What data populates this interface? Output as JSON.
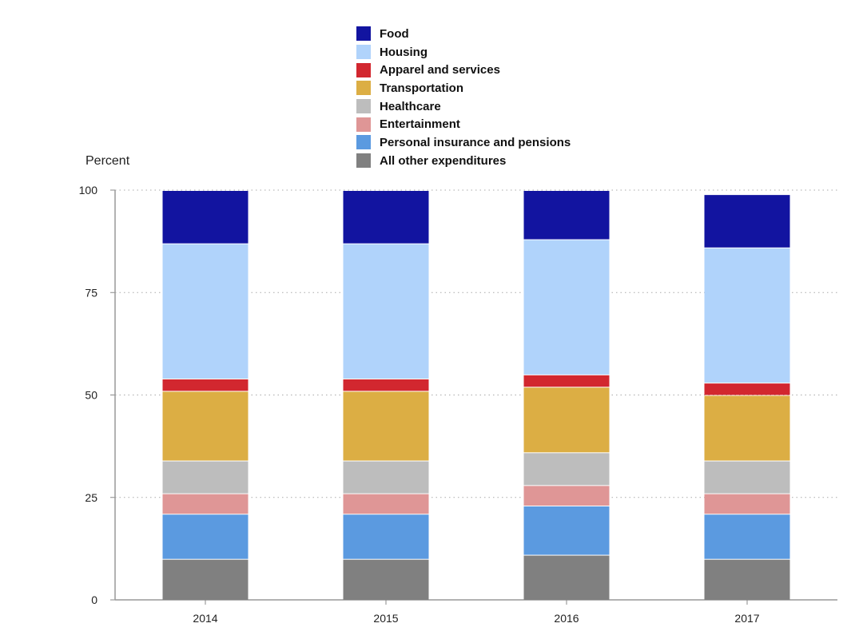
{
  "chart_data": {
    "type": "bar",
    "stacked": true,
    "title": "",
    "xlabel": "",
    "ylabel": "Percent",
    "ylim": [
      0,
      100
    ],
    "yticks": [
      0,
      25,
      50,
      75,
      100
    ],
    "grid": "horizontal dotted",
    "legend_placement": "top-center",
    "categories": [
      "2014",
      "2015",
      "2016",
      "2017"
    ],
    "series": [
      {
        "name": "All other expenditures",
        "color": "#808080",
        "values": [
          10,
          10,
          11,
          10
        ]
      },
      {
        "name": "Personal insurance and pensions",
        "color": "#5b9ae0",
        "values": [
          11,
          11,
          12,
          11
        ]
      },
      {
        "name": "Entertainment",
        "color": "#df9696",
        "values": [
          5,
          5,
          5,
          5
        ]
      },
      {
        "name": "Healthcare",
        "color": "#bdbdbd",
        "values": [
          8,
          8,
          8,
          8
        ]
      },
      {
        "name": "Transportation",
        "color": "#dcae44",
        "values": [
          17,
          17,
          16,
          16
        ]
      },
      {
        "name": "Apparel and services",
        "color": "#d2272f",
        "values": [
          3,
          3,
          3,
          3
        ]
      },
      {
        "name": "Housing",
        "color": "#b0d3fb",
        "values": [
          33,
          33,
          33,
          33
        ]
      },
      {
        "name": "Food",
        "color": "#1214a0",
        "values": [
          13,
          13,
          12,
          13
        ]
      }
    ]
  }
}
